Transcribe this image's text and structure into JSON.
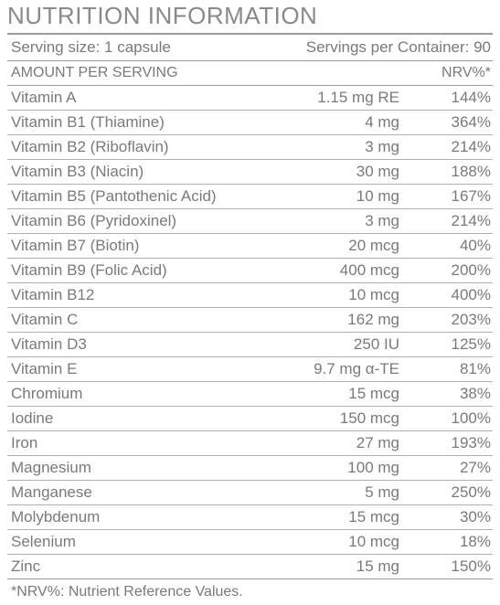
{
  "title": "NUTRITION INFORMATION",
  "serving": {
    "size": "Serving size: 1 capsule",
    "per_container": "Servings per Container: 90"
  },
  "header": {
    "amount": "AMOUNT PER SERVING",
    "nrv": "NRV%*"
  },
  "nutrients": [
    {
      "name": "Vitamin A",
      "amount": "1.15 mg RE",
      "nrv": "144%"
    },
    {
      "name": "Vitamin B1 (Thiamine)",
      "amount": "4 mg",
      "nrv": "364%"
    },
    {
      "name": "Vitamin B2 (Riboflavin)",
      "amount": "3 mg",
      "nrv": "214%"
    },
    {
      "name": "Vitamin B3 (Niacin)",
      "amount": "30 mg",
      "nrv": "188%"
    },
    {
      "name": "Vitamin B5 (Pantothenic Acid)",
      "amount": "10 mg",
      "nrv": "167%"
    },
    {
      "name": "Vitamin B6 (Pyridoxinel)",
      "amount": "3 mg",
      "nrv": "214%"
    },
    {
      "name": "Vitamin B7 (Biotin)",
      "amount": "20 mcg",
      "nrv": "40%"
    },
    {
      "name": "Vitamin B9 (Folic Acid)",
      "amount": "400 mcg",
      "nrv": "200%"
    },
    {
      "name": "Vitamin B12",
      "amount": "10 mcg",
      "nrv": "400%"
    },
    {
      "name": "Vitamin C",
      "amount": "162 mg",
      "nrv": "203%"
    },
    {
      "name": "Vitamin D3",
      "amount": "250 IU",
      "nrv": "125%"
    },
    {
      "name": "Vitamin E",
      "amount": "9.7 mg α-TE",
      "nrv": "81%"
    },
    {
      "name": "Chromium",
      "amount": "15 mcg",
      "nrv": "38%"
    },
    {
      "name": "Iodine",
      "amount": "150 mcg",
      "nrv": "100%"
    },
    {
      "name": "Iron",
      "amount": "27 mg",
      "nrv": "193%"
    },
    {
      "name": "Magnesium",
      "amount": "100 mg",
      "nrv": "27%"
    },
    {
      "name": "Manganese",
      "amount": "5 mg",
      "nrv": "250%"
    },
    {
      "name": "Molybdenum",
      "amount": "15 mcg",
      "nrv": "30%"
    },
    {
      "name": "Selenium",
      "amount": "10 mcg",
      "nrv": "18%"
    },
    {
      "name": "Zinc",
      "amount": "15 mg",
      "nrv": "150%"
    }
  ],
  "footnote": "*NRV%: Nutrient Reference Values."
}
